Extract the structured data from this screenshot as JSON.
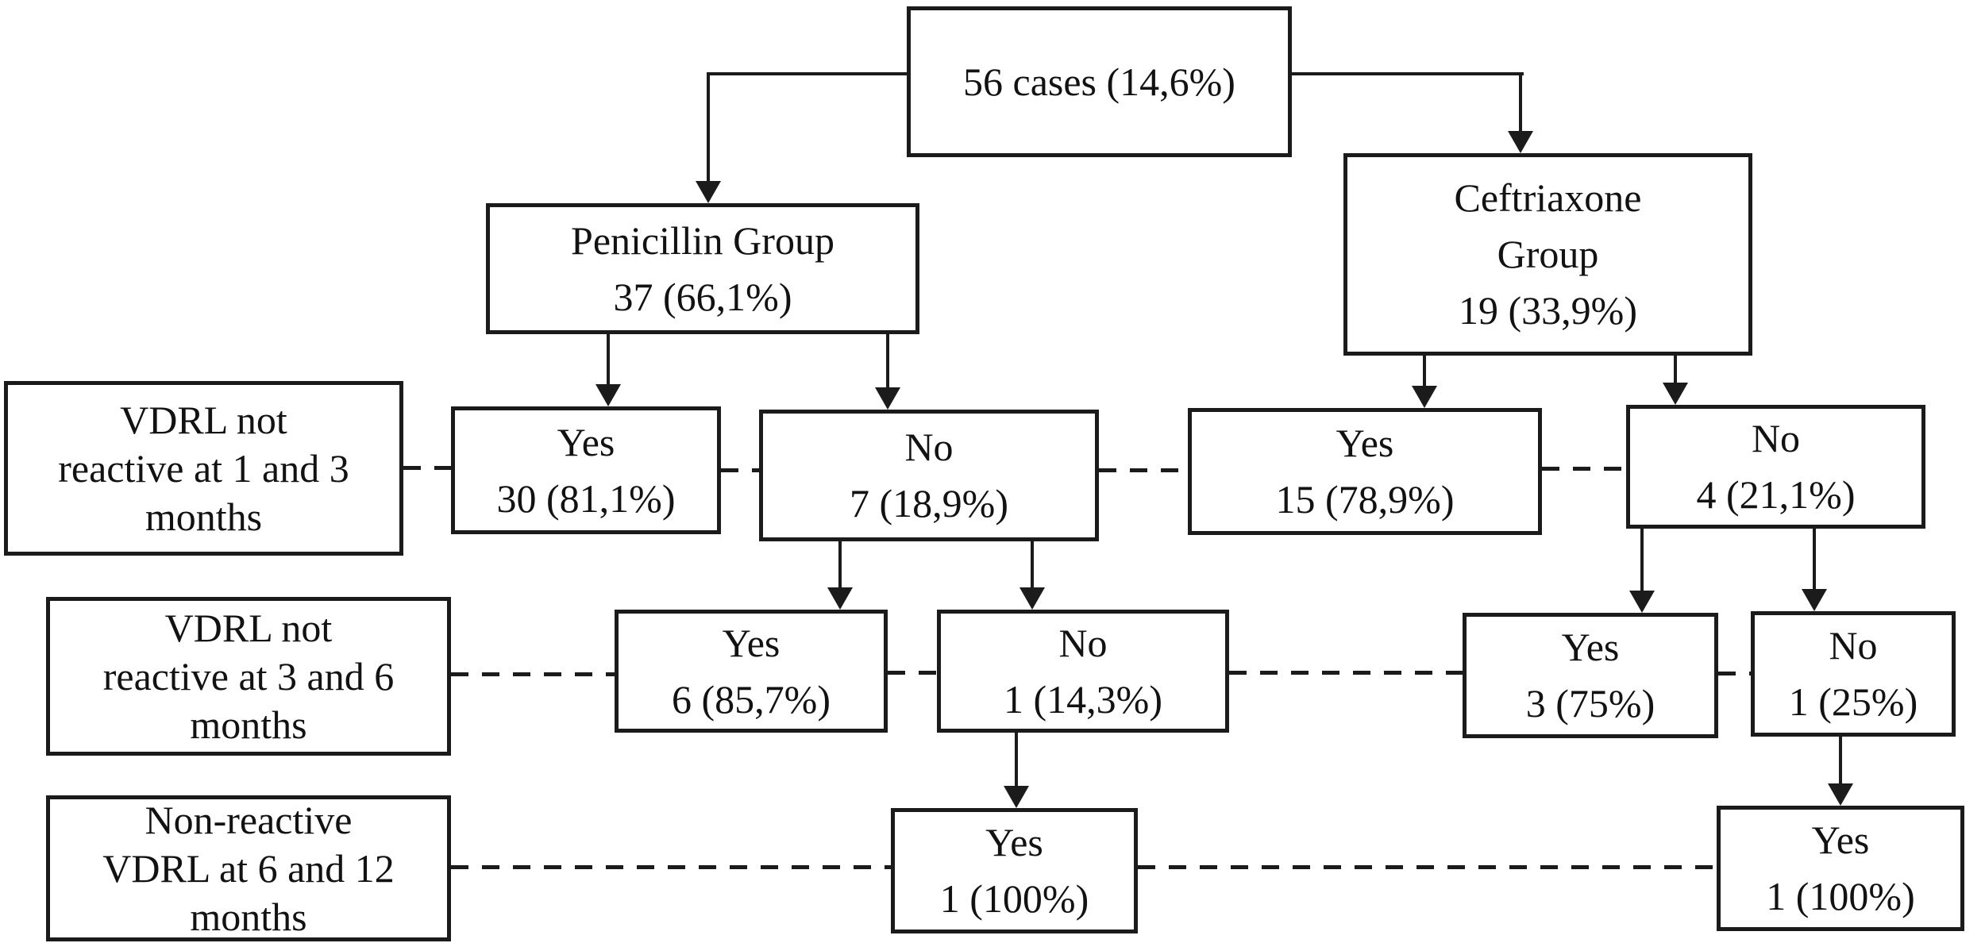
{
  "diagram": {
    "type": "flowchart",
    "background_color": "#ffffff",
    "line_color": "#1b1b1b",
    "nodes": {
      "total": {
        "lines": [
          "56 cases (14,6%)"
        ]
      },
      "penicillin": {
        "lines": [
          "Penicillin Group",
          "37 (66,1%)"
        ]
      },
      "ceftriaxone": {
        "lines": [
          "Ceftriaxone",
          "Group",
          "19 (33,9%)"
        ]
      },
      "label_row1": {
        "lines": [
          "VDRL not",
          "reactive at 1 and 3",
          "months"
        ]
      },
      "pen_row1_yes": {
        "lines": [
          "Yes",
          "30 (81,1%)"
        ]
      },
      "pen_row1_no": {
        "lines": [
          "No",
          "7 (18,9%)"
        ]
      },
      "cef_row1_yes": {
        "lines": [
          "Yes",
          "15 (78,9%)"
        ]
      },
      "cef_row1_no": {
        "lines": [
          "No",
          "4 (21,1%)"
        ]
      },
      "label_row2": {
        "lines": [
          "VDRL not",
          "reactive at 3 and 6",
          "months"
        ]
      },
      "pen_row2_yes": {
        "lines": [
          "Yes",
          "6 (85,7%)"
        ]
      },
      "pen_row2_no": {
        "lines": [
          "No",
          "1 (14,3%)"
        ]
      },
      "cef_row2_yes": {
        "lines": [
          "Yes",
          "3 (75%)"
        ]
      },
      "cef_row2_no": {
        "lines": [
          "No",
          "1 (25%)"
        ]
      },
      "label_row3": {
        "lines": [
          "Non-reactive",
          "VDRL at 6 and 12",
          "months"
        ]
      },
      "pen_row3_yes": {
        "lines": [
          "Yes",
          "1 (100%)"
        ]
      },
      "cef_row3_yes": {
        "lines": [
          "Yes",
          "1 (100%)"
        ]
      }
    }
  }
}
